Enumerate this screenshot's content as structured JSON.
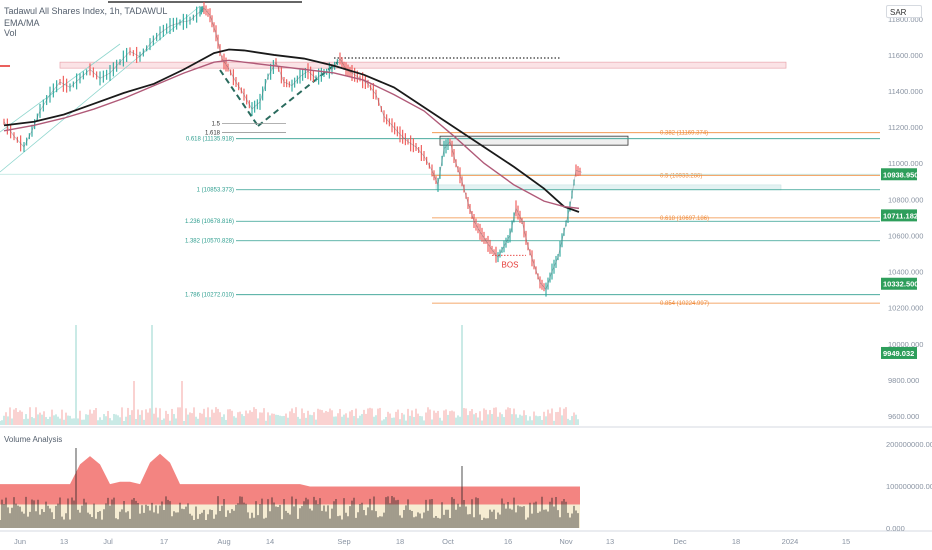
{
  "header": {
    "title": "Tadawul All Shares Index, 1h, TADAWUL",
    "line2": "EMA/MA",
    "line3": "Vol"
  },
  "currency": "SAR",
  "volume_pane_label": "Volume Analysis",
  "colors": {
    "up": "#26a69a",
    "down": "#ef5350",
    "ema": "#1a1a1a",
    "ma": "#b05a78",
    "fib_teal": "#2e9e8f",
    "fib_orange": "#f08c3c",
    "tag_green": "#2e9e5b",
    "vol_band": "#f27d7a",
    "vol_inner": "#f6ecd2"
  },
  "chart_data": [
    {
      "type": "line",
      "title": "Tadawul All Shares Index, 1h, TADAWUL",
      "y_ticks": [
        "11800.000",
        "11600.000",
        "11400.000",
        "11200.000",
        "11000.000",
        "10800.000",
        "10600.000",
        "10400.000",
        "10200.000",
        "10000.000",
        "9800.000",
        "9600.000"
      ],
      "x_ticks": [
        "Jun",
        "13",
        "Jul",
        "17",
        "Aug",
        "14",
        "Sep",
        "18",
        "Oct",
        "16",
        "Nov",
        "13",
        "Dec",
        "18",
        "2024",
        "15"
      ],
      "ylim": [
        9550,
        11860
      ],
      "series": [
        {
          "x": [
            0,
            10,
            20,
            28,
            36,
            46,
            56,
            66,
            76,
            86,
            96,
            106,
            116,
            126,
            136,
            146,
            156,
            166,
            176,
            186,
            196,
            200,
            206,
            212,
            218,
            224,
            232,
            240,
            248,
            256,
            264,
            272,
            280,
            288,
            296,
            304,
            312,
            320,
            328,
            336,
            342,
            348,
            356,
            364,
            372,
            380,
            388,
            396,
            404,
            412,
            420,
            428,
            434,
            440,
            446,
            452,
            458,
            464,
            470,
            476,
            482,
            488,
            494,
            500,
            506,
            512,
            518,
            524,
            530,
            536,
            542,
            548,
            554,
            560,
            566,
            572,
            578
          ],
          "values": [
            11230,
            11150,
            11090,
            11180,
            11290,
            11380,
            11450,
            11420,
            11470,
            11520,
            11470,
            11500,
            11560,
            11620,
            11590,
            11660,
            11720,
            11760,
            11780,
            11790,
            11840,
            11860,
            11820,
            11720,
            11580,
            11530,
            11450,
            11380,
            11300,
            11340,
            11480,
            11560,
            11450,
            11430,
            11480,
            11510,
            11470,
            11500,
            11520,
            11580,
            11520,
            11500,
            11470,
            11440,
            11380,
            11260,
            11210,
            11160,
            11120,
            11090,
            11040,
            10960,
            10880,
            11080,
            11120,
            11000,
            10900,
            10780,
            10680,
            10620,
            10570,
            10520,
            10480,
            10540,
            10600,
            10750,
            10680,
            10540,
            10440,
            10340,
            10300,
            10400,
            10480,
            10620,
            10760,
            10960,
            10950
          ]
        },
        {
          "name": "EMA",
          "x": [
            0,
            30,
            60,
            90,
            120,
            150,
            180,
            210,
            225,
            240,
            270,
            300,
            330,
            360,
            390,
            420,
            450,
            480,
            510,
            540,
            560,
            575
          ],
          "values": [
            11210,
            11230,
            11270,
            11330,
            11390,
            11440,
            11520,
            11610,
            11630,
            11625,
            11600,
            11580,
            11540,
            11490,
            11420,
            11310,
            11200,
            11090,
            10980,
            10860,
            10760,
            10730
          ]
        },
        {
          "name": "MA",
          "x": [
            0,
            30,
            60,
            90,
            120,
            150,
            180,
            210,
            225,
            240,
            270,
            300,
            330,
            360,
            390,
            420,
            450,
            480,
            510,
            540,
            560,
            575
          ],
          "values": [
            11180,
            11210,
            11250,
            11300,
            11360,
            11430,
            11500,
            11560,
            11570,
            11560,
            11540,
            11520,
            11500,
            11460,
            11380,
            11290,
            11150,
            11000,
            10880,
            10790,
            10760,
            10750
          ]
        }
      ]
    },
    {
      "type": "bar",
      "name": "Vol",
      "note": "volume histogram"
    },
    {
      "type": "area",
      "title": "Volume Analysis",
      "y_ticks": [
        "200000000.000",
        "100000000.000",
        "0.000"
      ],
      "ylim": [
        0,
        200000000
      ]
    }
  ],
  "price_tags": [
    {
      "label": "10938.950",
      "value": 10938.95,
      "color": "#2e9e5b"
    },
    {
      "label": "10711.182",
      "value": 10711.182,
      "color": "#2e9e5b"
    },
    {
      "label": "10332.500",
      "value": 10332.5,
      "color": "#2e9e5b"
    },
    {
      "label": "9949.032",
      "value": 9949.032,
      "color": "#2e9e5b"
    }
  ],
  "fib_left": [
    {
      "label": "1.5",
      "value": 11220
    },
    {
      "label": "1.618",
      "value": 11170
    },
    {
      "label": "0.618 (11135.918)",
      "value": 11135.918
    },
    {
      "label": "1 (10853.373)",
      "value": 10853.373
    },
    {
      "label": "1.236 (10678.816)",
      "value": 10678.816
    },
    {
      "label": "1.382 (10570.828)",
      "value": 10570.828
    },
    {
      "label": "1.786 (10272.010)",
      "value": 10272.01
    }
  ],
  "fib_right": [
    {
      "label": "0.382 (11169.374)",
      "value": 11169.374
    },
    {
      "label": "0.5 (10933.280)",
      "value": 10933.28
    },
    {
      "label": "0.618 (10697.186)",
      "value": 10697.186
    },
    {
      "label": "0.854 (10224.997)",
      "value": 10224.997
    }
  ],
  "annotation_bos": "BOS"
}
